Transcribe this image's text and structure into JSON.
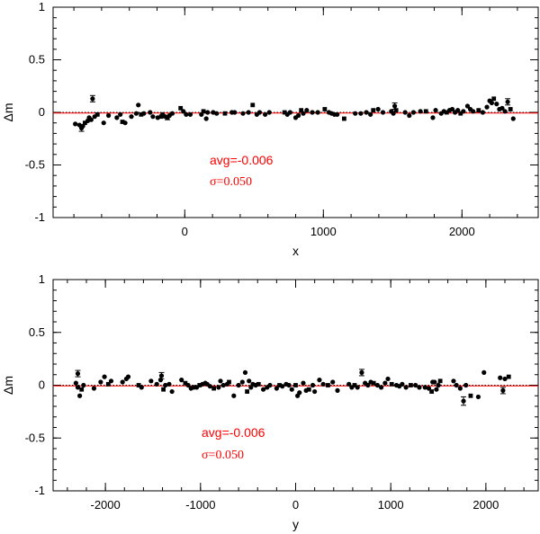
{
  "chart_data": [
    {
      "type": "scatter",
      "title": "",
      "xlabel": "x",
      "ylabel": "Δm",
      "xlim": [
        -950,
        2550
      ],
      "ylim": [
        -1,
        1
      ],
      "xticks": [
        0,
        1000,
        2000
      ],
      "yticks": [
        1,
        0.5,
        0,
        -0.5,
        -1
      ],
      "ytick_labels": [
        "1",
        "0.5",
        "0",
        "-0.5",
        "-1"
      ],
      "reference_lines": [
        {
          "y": 0,
          "style": "dotted",
          "color": "#000000"
        },
        {
          "y": -0.006,
          "style": "solid",
          "color": "#ff0000"
        }
      ],
      "annotations": [
        {
          "text": "avg=-0.006",
          "color": "#ff0000"
        },
        {
          "text": "σ=0.050",
          "color": "#ff0000"
        }
      ],
      "error_bar_points": [
        {
          "x": -745,
          "y": -0.15,
          "err": 0.03
        },
        {
          "x": -665,
          "y": 0.13,
          "err": 0.03
        },
        {
          "x": -125,
          "y": -0.05,
          "err": 0.02
        },
        {
          "x": 1515,
          "y": 0.06,
          "err": 0.03
        },
        {
          "x": 2330,
          "y": 0.1,
          "err": 0.03
        }
      ],
      "points": [
        [
          -790,
          -0.11
        ],
        [
          -760,
          -0.12
        ],
        [
          -735,
          -0.13
        ],
        [
          -720,
          -0.1
        ],
        [
          -700,
          -0.08
        ],
        [
          -690,
          -0.05
        ],
        [
          -675,
          -0.07
        ],
        [
          -650,
          -0.04
        ],
        [
          -630,
          -0.02
        ],
        [
          -585,
          -0.1
        ],
        [
          -550,
          -0.03
        ],
        [
          -490,
          -0.05
        ],
        [
          -465,
          -0.02
        ],
        [
          -450,
          -0.09
        ],
        [
          -430,
          -0.1
        ],
        [
          -385,
          -0.04
        ],
        [
          -350,
          -0.01
        ],
        [
          -335,
          0.07
        ],
        [
          -315,
          -0.02
        ],
        [
          -295,
          -0.01
        ],
        [
          -250,
          0.0
        ],
        [
          -230,
          -0.04
        ],
        [
          -195,
          -0.05
        ],
        [
          -170,
          -0.04
        ],
        [
          -160,
          -0.02
        ],
        [
          -140,
          -0.04
        ],
        [
          -110,
          -0.03
        ],
        [
          -90,
          -0.01
        ],
        [
          -30,
          0.04
        ],
        [
          -10,
          0.01
        ],
        [
          10,
          -0.02
        ],
        [
          40,
          -0.02
        ],
        [
          120,
          -0.02
        ],
        [
          135,
          0.01
        ],
        [
          155,
          -0.06
        ],
        [
          165,
          0.0
        ],
        [
          205,
          0.0
        ],
        [
          230,
          -0.01
        ],
        [
          290,
          -0.01
        ],
        [
          340,
          0.0
        ],
        [
          360,
          0.0
        ],
        [
          420,
          -0.01
        ],
        [
          460,
          0.0
        ],
        [
          490,
          0.07
        ],
        [
          520,
          -0.02
        ],
        [
          540,
          0.0
        ],
        [
          580,
          -0.02
        ],
        [
          610,
          0.0
        ],
        [
          720,
          0.0
        ],
        [
          740,
          -0.02
        ],
        [
          760,
          0.0
        ],
        [
          800,
          -0.05
        ],
        [
          820,
          -0.03
        ],
        [
          840,
          0.02
        ],
        [
          855,
          -0.01
        ],
        [
          880,
          0.02
        ],
        [
          920,
          0.0
        ],
        [
          960,
          0.0
        ],
        [
          1010,
          0.03
        ],
        [
          1040,
          0.0
        ],
        [
          1060,
          -0.01
        ],
        [
          1080,
          -0.02
        ],
        [
          1100,
          -0.02
        ],
        [
          1150,
          -0.06
        ],
        [
          1230,
          -0.01
        ],
        [
          1270,
          -0.01
        ],
        [
          1310,
          0.0
        ],
        [
          1340,
          -0.02
        ],
        [
          1360,
          0.02
        ],
        [
          1395,
          0.03
        ],
        [
          1430,
          0.0
        ],
        [
          1490,
          0.01
        ],
        [
          1505,
          -0.01
        ],
        [
          1525,
          0.02
        ],
        [
          1590,
          0.0
        ],
        [
          1620,
          -0.03
        ],
        [
          1650,
          0.0
        ],
        [
          1700,
          0.01
        ],
        [
          1740,
          0.01
        ],
        [
          1790,
          -0.05
        ],
        [
          1810,
          0.02
        ],
        [
          1850,
          -0.01
        ],
        [
          1870,
          0.01
        ],
        [
          1890,
          0.0
        ],
        [
          1910,
          0.02
        ],
        [
          1930,
          0.03
        ],
        [
          1950,
          0.0
        ],
        [
          1970,
          0.02
        ],
        [
          1990,
          -0.01
        ],
        [
          2010,
          0.01
        ],
        [
          2040,
          0.06
        ],
        [
          2060,
          0.03
        ],
        [
          2080,
          0.01
        ],
        [
          2120,
          0.02
        ],
        [
          2150,
          0.0
        ],
        [
          2180,
          0.05
        ],
        [
          2200,
          0.11
        ],
        [
          2215,
          0.09
        ],
        [
          2230,
          0.13
        ],
        [
          2250,
          0.08
        ],
        [
          2270,
          0.03
        ],
        [
          2290,
          0.04
        ],
        [
          2310,
          0.01
        ],
        [
          2350,
          0.03
        ],
        [
          2370,
          -0.06
        ]
      ]
    },
    {
      "type": "scatter",
      "title": "",
      "xlabel": "y",
      "ylabel": "Δm",
      "xlim": [
        -2550,
        2550
      ],
      "ylim": [
        -1,
        1
      ],
      "xticks": [
        -2000,
        -1000,
        0,
        1000,
        2000
      ],
      "yticks": [
        1,
        0.5,
        0,
        -0.5,
        -1
      ],
      "ytick_labels": [
        "1",
        "0.5",
        "0",
        "-0.5",
        "-1"
      ],
      "reference_lines": [
        {
          "y": 0,
          "style": "dotted",
          "color": "#000000"
        },
        {
          "y": -0.006,
          "style": "solid",
          "color": "#ff0000"
        }
      ],
      "annotations": [
        {
          "text": "avg=-0.006",
          "color": "#ff0000"
        },
        {
          "text": "σ=0.050",
          "color": "#ff0000"
        }
      ],
      "error_bar_points": [
        {
          "x": -2290,
          "y": 0.11,
          "err": 0.03
        },
        {
          "x": -1410,
          "y": 0.09,
          "err": 0.03
        },
        {
          "x": 695,
          "y": 0.12,
          "err": 0.03
        },
        {
          "x": 1765,
          "y": -0.15,
          "err": 0.04
        },
        {
          "x": 2180,
          "y": -0.05,
          "err": 0.03
        }
      ],
      "points": [
        [
          -2310,
          0.02
        ],
        [
          -2290,
          -0.02
        ],
        [
          -2270,
          -0.1
        ],
        [
          -2250,
          -0.04
        ],
        [
          -2230,
          0.0
        ],
        [
          -2120,
          -0.03
        ],
        [
          -2050,
          0.03
        ],
        [
          -2010,
          0.08
        ],
        [
          -1970,
          0.01
        ],
        [
          -1940,
          0.04
        ],
        [
          -1820,
          0.03
        ],
        [
          -1780,
          0.06
        ],
        [
          -1760,
          0.08
        ],
        [
          -1650,
          0.0
        ],
        [
          -1620,
          -0.02
        ],
        [
          -1520,
          0.04
        ],
        [
          -1460,
          0.01
        ],
        [
          -1420,
          0.05
        ],
        [
          -1390,
          -0.04
        ],
        [
          -1370,
          0.0
        ],
        [
          -1330,
          0.01
        ],
        [
          -1300,
          -0.06
        ],
        [
          -1200,
          0.05
        ],
        [
          -1160,
          0.02
        ],
        [
          -1130,
          0.0
        ],
        [
          -1100,
          -0.03
        ],
        [
          -1070,
          -0.02
        ],
        [
          -1040,
          -0.02
        ],
        [
          -1010,
          0.0
        ],
        [
          -980,
          0.01
        ],
        [
          -950,
          0.02
        ],
        [
          -930,
          0.01
        ],
        [
          -900,
          -0.01
        ],
        [
          -860,
          -0.03
        ],
        [
          -810,
          -0.02
        ],
        [
          -790,
          0.04
        ],
        [
          -760,
          0.0
        ],
        [
          -720,
          0.01
        ],
        [
          -700,
          0.03
        ],
        [
          -650,
          -0.1
        ],
        [
          -600,
          0.0
        ],
        [
          -560,
          0.03
        ],
        [
          -530,
          0.12
        ],
        [
          -510,
          -0.06
        ],
        [
          -490,
          0.04
        ],
        [
          -470,
          -0.02
        ],
        [
          -450,
          0.01
        ],
        [
          -420,
          0.0
        ],
        [
          -390,
          0.01
        ],
        [
          -340,
          -0.04
        ],
        [
          -300,
          -0.02
        ],
        [
          -270,
          0.0
        ],
        [
          -200,
          -0.03
        ],
        [
          -170,
          0.0
        ],
        [
          -140,
          -0.01
        ],
        [
          -100,
          0.01
        ],
        [
          -70,
          0.0
        ],
        [
          -40,
          -0.04
        ],
        [
          0,
          0.0
        ],
        [
          20,
          -0.1
        ],
        [
          40,
          -0.07
        ],
        [
          80,
          0.02
        ],
        [
          110,
          -0.05
        ],
        [
          140,
          -0.04
        ],
        [
          180,
          0.0
        ],
        [
          200,
          -0.06
        ],
        [
          250,
          0.05
        ],
        [
          290,
          0.01
        ],
        [
          340,
          0.0
        ],
        [
          390,
          0.03
        ],
        [
          440,
          -0.05
        ],
        [
          560,
          0.01
        ],
        [
          590,
          -0.02
        ],
        [
          620,
          0.0
        ],
        [
          650,
          -0.02
        ],
        [
          730,
          0.02
        ],
        [
          760,
          0.0
        ],
        [
          790,
          0.03
        ],
        [
          820,
          0.02
        ],
        [
          860,
          0.0
        ],
        [
          900,
          -0.02
        ],
        [
          940,
          0.02
        ],
        [
          970,
          0.06
        ],
        [
          1010,
          0.01
        ],
        [
          1060,
          0.0
        ],
        [
          1090,
          -0.01
        ],
        [
          1120,
          0.01
        ],
        [
          1160,
          -0.02
        ],
        [
          1210,
          0.0
        ],
        [
          1260,
          0.0
        ],
        [
          1300,
          -0.02
        ],
        [
          1360,
          -0.02
        ],
        [
          1400,
          -0.03
        ],
        [
          1430,
          -0.06
        ],
        [
          1440,
          0.03
        ],
        [
          1460,
          0.03
        ],
        [
          1480,
          -0.04
        ],
        [
          1500,
          0.0
        ],
        [
          1520,
          0.04
        ],
        [
          1660,
          0.04
        ],
        [
          1690,
          0.0
        ],
        [
          1730,
          -0.03
        ],
        [
          1790,
          0.0
        ],
        [
          1840,
          -0.1
        ],
        [
          1920,
          -0.11
        ],
        [
          1980,
          0.12
        ],
        [
          2150,
          0.07
        ],
        [
          2200,
          0.06
        ],
        [
          2240,
          0.08
        ]
      ]
    }
  ]
}
